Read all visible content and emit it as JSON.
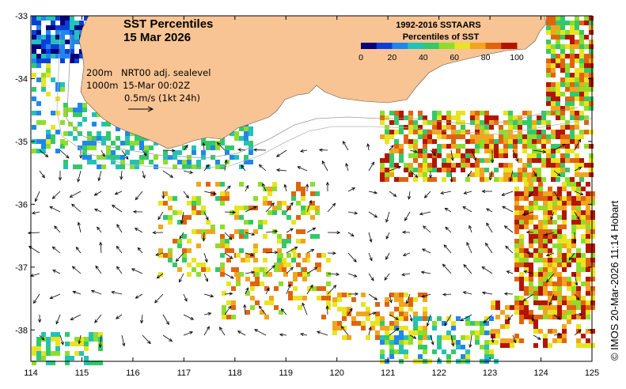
{
  "title": {
    "line1": "SST Percentiles",
    "line2": "15 Mar 2026"
  },
  "legend": {
    "title_line1": "1992-2016 SSTAARS",
    "title_line2": "Percentiles of SST",
    "colors": [
      "#08007a",
      "#0a3fd8",
      "#1f86ee",
      "#22c2b8",
      "#33c86a",
      "#8dde2a",
      "#e8e420",
      "#f2a51e",
      "#e0640f",
      "#b31500"
    ],
    "tick_labels": [
      "0",
      "20",
      "40",
      "60",
      "80",
      "100"
    ]
  },
  "annotations": {
    "contour_line1_depth": "200m",
    "contour_line2_depth": "1000m",
    "source_line": "NRT00 adj. sealevel",
    "datetime": "15-Mar 00:02Z",
    "scale": "0.5m/s (1kt 24h)"
  },
  "axes": {
    "x_ticks": [
      "114",
      "115",
      "116",
      "117",
      "118",
      "119",
      "120",
      "121",
      "122",
      "123",
      "124",
      "125"
    ],
    "y_ticks": [
      "-33",
      "-34",
      "-35",
      "-36",
      "-37",
      "-38"
    ]
  },
  "map_extent": {
    "lon_range": [
      114,
      125
    ],
    "lat_range": [
      -38.5,
      -33
    ]
  },
  "credit": "© IMOS 20-Mar-2026 11:14 Hobart",
  "colors": {
    "land": "#f9c493",
    "ocean": "#ffffff",
    "isobath": "#aaaaaa"
  }
}
